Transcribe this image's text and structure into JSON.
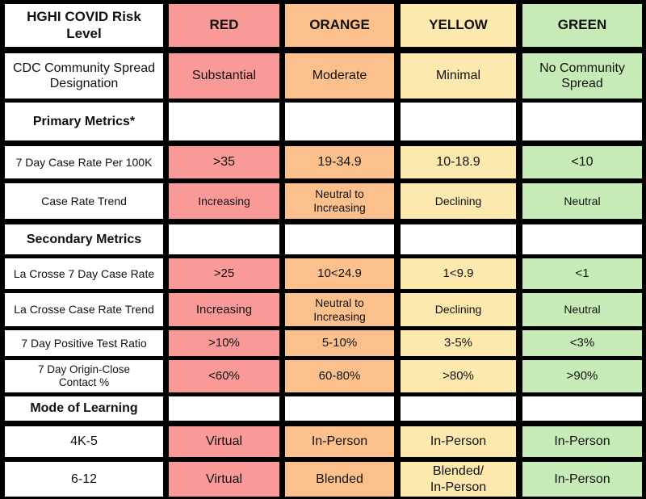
{
  "header": {
    "title": "HGHI COVID Risk Level",
    "levels": [
      "RED",
      "ORANGE",
      "YELLOW",
      "GREEN"
    ]
  },
  "cdc": {
    "label_line1": "CDC Community Spread",
    "label_line2": "Designation",
    "red": "Substantial",
    "orange": "Moderate",
    "yellow": "Minimal",
    "green_line1": "No Community",
    "green_line2": "Spread"
  },
  "primary": {
    "title": "Primary Metrics*",
    "case_rate": {
      "label": "7 Day Case Rate Per 100K",
      "red": ">35",
      "orange": "19-34.9",
      "yellow": "10-18.9",
      "green": "<10"
    },
    "trend": {
      "label": "Case Rate Trend",
      "red": "Increasing",
      "orange_line1": "Neutral to",
      "orange_line2": "Increasing",
      "yellow": "Declining",
      "green": "Neutral"
    }
  },
  "secondary": {
    "title": "Secondary Metrics",
    "lacrosse_rate": {
      "label": "La Crosse 7 Day Case Rate",
      "red": ">25",
      "orange": "10<24.9",
      "yellow": "1<9.9",
      "green": "<1"
    },
    "lacrosse_trend": {
      "label": "La Crosse Case Rate Trend",
      "red": "Increasing",
      "orange_line1": "Neutral to",
      "orange_line2": "Increasing",
      "yellow": "Declining",
      "green": "Neutral"
    },
    "positive_ratio": {
      "label": "7 Day Positive Test Ratio",
      "red": ">10%",
      "orange": "5-10%",
      "yellow": "3-5%",
      "green": "<3%"
    },
    "origin_close": {
      "label_line1": "7 Day Origin-Close",
      "label_line2": "Contact %",
      "red": "<60%",
      "orange": "60-80%",
      "yellow": ">80%",
      "green": ">90%"
    }
  },
  "learning": {
    "title": "Mode of Learning",
    "k5": {
      "label": "4K-5",
      "red": "Virtual",
      "orange": "In-Person",
      "yellow": "In-Person",
      "green": "In-Person"
    },
    "g612": {
      "label": "6-12",
      "red": "Virtual",
      "orange": "Blended",
      "yellow_line1": "Blended/",
      "yellow_line2": "In-Person",
      "green": "In-Person"
    }
  }
}
